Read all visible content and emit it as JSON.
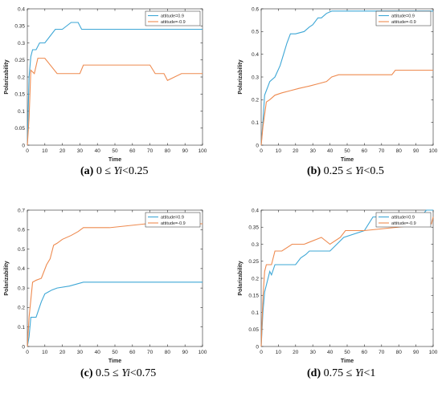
{
  "figure": {
    "captions": [
      {
        "label": "(a)",
        "text": "0 ≤ ",
        "var": "Yi",
        "rest": "<0.25"
      },
      {
        "label": "(b)",
        "text": "0.25 ≤ ",
        "var": "Yi",
        "rest": "<0.5"
      },
      {
        "label": "(c)",
        "text": "0.5 ≤ ",
        "var": "Yi",
        "rest": "<0.75"
      },
      {
        "label": "(d)",
        "text": "0.75 ≤ ",
        "var": "Yi",
        "rest": "<1"
      }
    ]
  },
  "colors": {
    "blue": "#3ea7d6",
    "orange": "#ee8a4f",
    "axis": "#262626",
    "background": "#ffffff"
  },
  "chart_data": [
    {
      "type": "line",
      "xlabel": "Time",
      "ylabel": "Polarizability",
      "xlim": [
        0,
        100
      ],
      "ylim": [
        0,
        0.4
      ],
      "xticks": [
        0,
        10,
        20,
        30,
        40,
        50,
        60,
        70,
        80,
        90,
        100
      ],
      "yticks": [
        0,
        0.05,
        0.1,
        0.15,
        0.2,
        0.25,
        0.3,
        0.35,
        0.4
      ],
      "legend_position": "top-right",
      "series": [
        {
          "name": "attitude=0.9",
          "color": "blue",
          "x": [
            0,
            1,
            2,
            3,
            5,
            7,
            10,
            13,
            16,
            20,
            25,
            29,
            31,
            100
          ],
          "y": [
            0,
            0.2,
            0.26,
            0.28,
            0.28,
            0.3,
            0.3,
            0.32,
            0.34,
            0.34,
            0.36,
            0.36,
            0.34,
            0.34
          ]
        },
        {
          "name": "attitude=-0.9",
          "color": "orange",
          "x": [
            0,
            1,
            2,
            4,
            6,
            10,
            17,
            20,
            30,
            32,
            70,
            73,
            78,
            80,
            88,
            100
          ],
          "y": [
            0,
            0.08,
            0.22,
            0.21,
            0.255,
            0.255,
            0.21,
            0.21,
            0.21,
            0.235,
            0.235,
            0.21,
            0.21,
            0.19,
            0.21,
            0.21
          ]
        }
      ]
    },
    {
      "type": "line",
      "xlabel": "Time",
      "ylabel": "Polarizability",
      "xlim": [
        0,
        100
      ],
      "ylim": [
        0,
        0.6
      ],
      "xticks": [
        0,
        10,
        20,
        30,
        40,
        50,
        60,
        70,
        80,
        90,
        100
      ],
      "yticks": [
        0,
        0.1,
        0.2,
        0.3,
        0.4,
        0.5,
        0.6
      ],
      "legend_position": "top-right",
      "series": [
        {
          "name": "attitude=0.9",
          "color": "blue",
          "x": [
            0,
            1,
            2,
            3,
            5,
            8,
            11,
            13,
            15,
            17,
            20,
            25,
            28,
            30,
            33,
            35,
            38,
            41,
            45,
            100
          ],
          "y": [
            0,
            0.1,
            0.22,
            0.24,
            0.28,
            0.3,
            0.35,
            0.4,
            0.45,
            0.49,
            0.49,
            0.5,
            0.52,
            0.53,
            0.56,
            0.56,
            0.58,
            0.59,
            0.59,
            0.59
          ]
        },
        {
          "name": "attitude=-0.9",
          "color": "orange",
          "x": [
            0,
            1,
            3,
            5,
            8,
            12,
            17,
            22,
            28,
            33,
            38,
            41,
            45,
            76,
            78,
            100
          ],
          "y": [
            0,
            0.08,
            0.19,
            0.2,
            0.22,
            0.23,
            0.24,
            0.25,
            0.26,
            0.27,
            0.28,
            0.3,
            0.31,
            0.31,
            0.33,
            0.33
          ]
        }
      ]
    },
    {
      "type": "line",
      "xlabel": "Time",
      "ylabel": "Polarizability",
      "xlim": [
        0,
        100
      ],
      "ylim": [
        0,
        0.7
      ],
      "xticks": [
        0,
        10,
        20,
        30,
        40,
        50,
        60,
        70,
        80,
        90,
        100
      ],
      "yticks": [
        0,
        0.1,
        0.2,
        0.3,
        0.4,
        0.5,
        0.6,
        0.7
      ],
      "legend_position": "top-right",
      "series": [
        {
          "name": "attitude=0.9",
          "color": "blue",
          "x": [
            0,
            1,
            2,
            5,
            8,
            10,
            12,
            14,
            17,
            24,
            32,
            100
          ],
          "y": [
            0,
            0.05,
            0.15,
            0.15,
            0.23,
            0.27,
            0.28,
            0.29,
            0.3,
            0.31,
            0.33,
            0.33
          ]
        },
        {
          "name": "attitude=-0.9",
          "color": "orange",
          "x": [
            0,
            1,
            3,
            5,
            8,
            11,
            13,
            15,
            17,
            20,
            25,
            29,
            32,
            40,
            47,
            68,
            100
          ],
          "y": [
            0,
            0.15,
            0.33,
            0.34,
            0.35,
            0.42,
            0.45,
            0.52,
            0.53,
            0.55,
            0.57,
            0.59,
            0.61,
            0.61,
            0.61,
            0.63,
            0.63
          ]
        }
      ]
    },
    {
      "type": "line",
      "xlabel": "Time",
      "ylabel": "Polarizability",
      "xlim": [
        0,
        100
      ],
      "ylim": [
        0,
        0.4
      ],
      "xticks": [
        0,
        10,
        20,
        30,
        40,
        50,
        60,
        70,
        80,
        90,
        100
      ],
      "yticks": [
        0,
        0.05,
        0.1,
        0.15,
        0.2,
        0.25,
        0.3,
        0.35,
        0.4
      ],
      "legend_position": "top-right",
      "series": [
        {
          "name": "attitude=0.9",
          "color": "blue",
          "x": [
            0,
            1,
            2,
            3,
            5,
            6,
            8,
            20,
            23,
            26,
            28,
            40,
            44,
            48,
            60,
            65,
            93,
            96,
            100
          ],
          "y": [
            0,
            0.1,
            0.16,
            0.18,
            0.22,
            0.21,
            0.24,
            0.24,
            0.26,
            0.27,
            0.28,
            0.28,
            0.3,
            0.32,
            0.34,
            0.38,
            0.38,
            0.4,
            0.4
          ]
        },
        {
          "name": "attitude=-0.9",
          "color": "orange",
          "x": [
            0,
            1,
            2,
            3,
            6,
            8,
            12,
            18,
            25,
            35,
            40,
            46,
            49,
            55,
            60,
            99,
            100
          ],
          "y": [
            0,
            0.14,
            0.22,
            0.24,
            0.24,
            0.28,
            0.28,
            0.3,
            0.3,
            0.32,
            0.3,
            0.32,
            0.34,
            0.34,
            0.34,
            0.36,
            0.38
          ]
        }
      ]
    }
  ]
}
